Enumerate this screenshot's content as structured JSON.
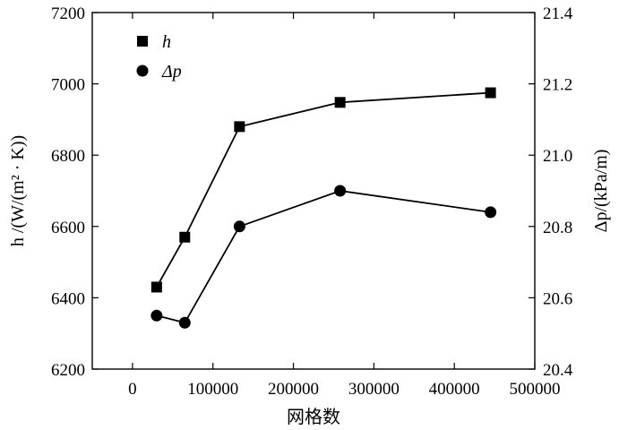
{
  "chart_data": {
    "type": "line",
    "title": "",
    "xlabel": "网格数",
    "ylabel_left": "h /(W/(m² · K))",
    "ylabel_right": "Δp/(kPa/m)",
    "xlim": [
      -50000,
      500000
    ],
    "x_ticks": [
      0,
      100000,
      200000,
      300000,
      400000,
      500000
    ],
    "ylim_left": [
      6200,
      7200
    ],
    "y_ticks_left": [
      6200,
      6400,
      6600,
      6800,
      7000,
      7200
    ],
    "ylim_right": [
      20.4,
      21.4
    ],
    "y_ticks_right": [
      "20.4",
      "20.6",
      "20.8",
      "21.0",
      "21.2",
      "21.4"
    ],
    "grid": false,
    "legend_position": "top-left",
    "series": [
      {
        "name": "h",
        "axis": "left",
        "marker": "square",
        "x": [
          30000,
          65000,
          133000,
          258000,
          445000
        ],
        "y": [
          6430,
          6570,
          6880,
          6948,
          6975
        ]
      },
      {
        "name": "Δp",
        "axis": "right",
        "marker": "circle",
        "x": [
          30000,
          65000,
          133000,
          258000,
          445000
        ],
        "y": [
          20.55,
          20.53,
          20.8,
          20.9,
          20.84
        ]
      }
    ]
  }
}
